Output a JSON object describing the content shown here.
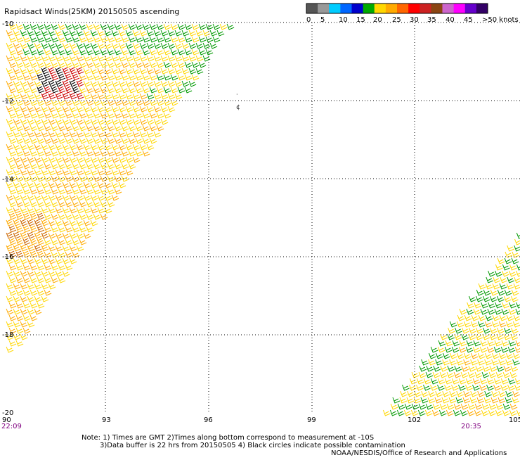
{
  "title": "Rapidsact Winds(25KM) 20150505 ascending",
  "colorbar": {
    "colors": [
      "#555555",
      "#999999",
      "#00ccff",
      "#0066ff",
      "#0000cc",
      "#00aa00",
      "#ffd700",
      "#ffaa00",
      "#ff6600",
      "#ff0000",
      "#cc2222",
      "#8b4513",
      "#cc66cc",
      "#ff00ff",
      "#6600cc",
      "#330066"
    ],
    "labels": [
      "0",
      "5",
      "10",
      "15",
      "20",
      "25",
      "30",
      "35",
      "40",
      "45",
      ">50 knots"
    ]
  },
  "map": {
    "lon_labels": [
      "90",
      "93",
      "96",
      "99",
      "102",
      "105"
    ],
    "lat_labels": [
      "-10",
      "-12",
      "-14",
      "-16",
      "-18",
      "-20"
    ],
    "time_left": "22:09",
    "time_right": "20:35",
    "island_marker": "¢"
  },
  "notes": {
    "line1": "Note: 1) Times are GMT 2)Times along bottom correspond to measurement at -10S",
    "line2": "3)Data buffer is 22 hrs from 20150505 4) Black circles indicate possible contamination",
    "credit": "NOAA/NESDIS/Office of Research and Applications"
  },
  "wind_colors": {
    "yellow": "#ffd700",
    "orange": "#ffaa00",
    "green": "#009900",
    "black": "#000000",
    "red": "#cc0000"
  }
}
